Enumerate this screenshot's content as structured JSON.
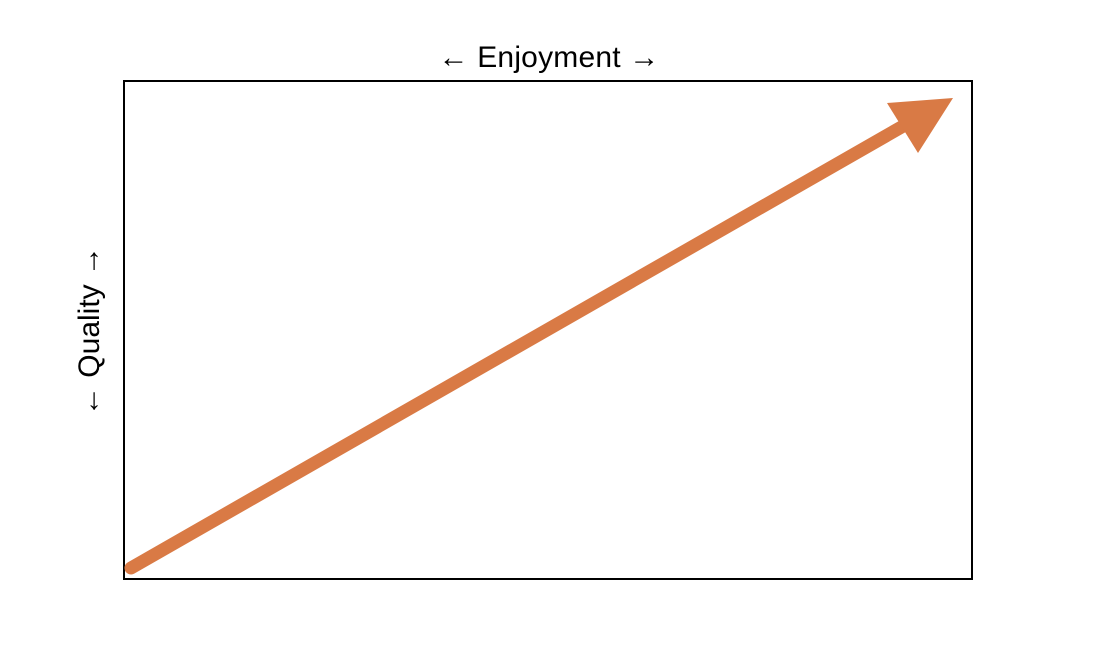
{
  "diagram": {
    "x_axis_label": "← Enjoyment →",
    "y_axis_label": "← Quality →",
    "arrow": {
      "color": "#D97A45",
      "direction": "bottom-left to top-right"
    },
    "frame_color": "#000000"
  }
}
